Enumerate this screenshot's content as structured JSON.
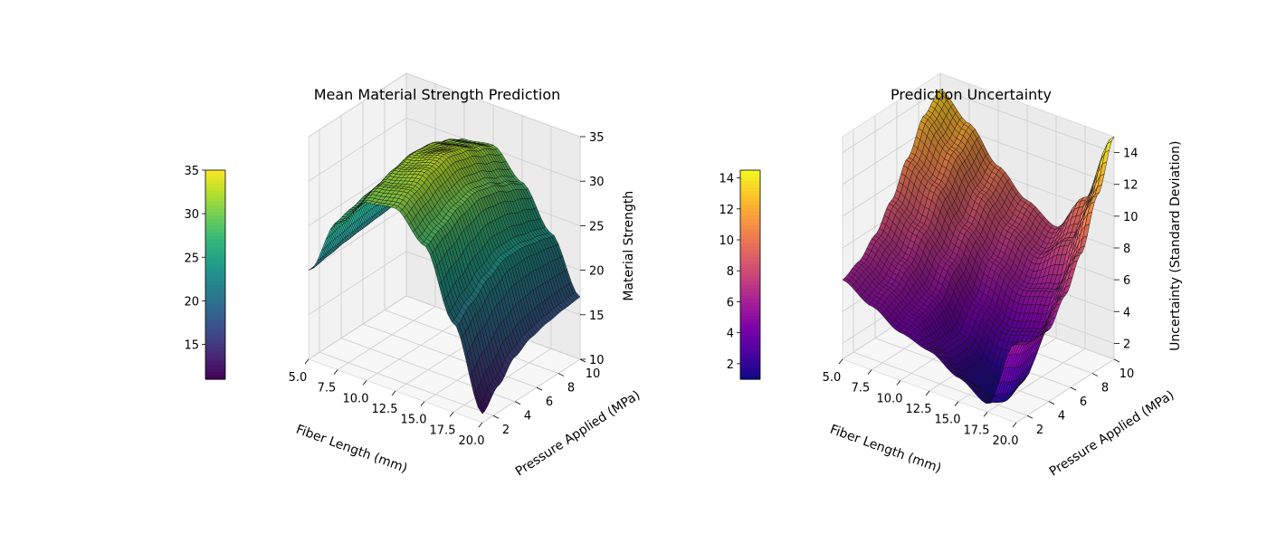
{
  "chart_data": [
    {
      "type": "surface3d",
      "title": "Mean Material Strength Prediction",
      "xlabel": "Fiber Length (mm)",
      "ylabel": "Pressure Applied (MPa)",
      "zlabel": "Material Strength",
      "xlim": [
        5,
        20
      ],
      "ylim": [
        1,
        10
      ],
      "zlim": [
        10,
        35
      ],
      "xticks": [
        "5.0",
        "7.5",
        "10.0",
        "12.5",
        "15.0",
        "17.5",
        "20.0"
      ],
      "yticks": [
        "2",
        "4",
        "6",
        "8",
        "10"
      ],
      "zticks": [
        "10",
        "15",
        "20",
        "25",
        "30",
        "35"
      ],
      "colormap": "viridis",
      "colorbar": {
        "range": [
          11,
          35
        ],
        "ticks": [
          "15",
          "20",
          "25",
          "30",
          "35"
        ]
      },
      "grid": true,
      "surface": {
        "x": [
          5,
          7.5,
          10,
          12.5,
          15,
          17.5,
          20
        ],
        "y": [
          1,
          2.5,
          4,
          5.5,
          7,
          8.5,
          10
        ],
        "z": [
          [
            20.0,
            26.5,
            30.0,
            30.5,
            27.5,
            20.0,
            11.0
          ],
          [
            20.3,
            27.0,
            30.8,
            31.5,
            28.5,
            21.5,
            13.0
          ],
          [
            20.6,
            27.5,
            31.5,
            32.5,
            29.5,
            23.0,
            15.0
          ],
          [
            20.8,
            27.8,
            32.0,
            33.0,
            30.0,
            24.0,
            16.0
          ],
          [
            21.0,
            27.8,
            31.8,
            32.5,
            29.5,
            24.0,
            16.5
          ],
          [
            21.2,
            27.5,
            31.0,
            31.5,
            28.5,
            23.5,
            16.8
          ],
          [
            21.5,
            27.0,
            30.0,
            30.5,
            27.5,
            23.0,
            17.0
          ]
        ]
      }
    },
    {
      "type": "surface3d",
      "title": "Prediction Uncertainty",
      "xlabel": "Fiber Length (mm)",
      "ylabel": "Pressure Applied (MPa)",
      "zlabel": "Uncertainty (Standard Deviation)",
      "xlim": [
        5,
        20
      ],
      "ylim": [
        1,
        10
      ],
      "zlim": [
        1,
        15
      ],
      "xticks": [
        "5.0",
        "7.5",
        "10.0",
        "12.5",
        "15.0",
        "17.5",
        "20.0"
      ],
      "yticks": [
        "2",
        "4",
        "6",
        "8",
        "10"
      ],
      "zticks": [
        "2",
        "4",
        "6",
        "8",
        "10",
        "12",
        "14"
      ],
      "colormap": "plasma",
      "colorbar": {
        "range": [
          1,
          14.5
        ],
        "ticks": [
          "2",
          "4",
          "6",
          "8",
          "10",
          "12",
          "14"
        ]
      },
      "grid": true,
      "surface": {
        "x": [
          5,
          7.5,
          10,
          12.5,
          15,
          17.5,
          20
        ],
        "y": [
          1,
          2.5,
          4,
          5.5,
          7,
          8.5,
          10
        ],
        "z": [
          [
            6.0,
            5.0,
            4.0,
            3.5,
            2.5,
            1.5,
            6.0
          ],
          [
            6.5,
            5.5,
            4.5,
            3.0,
            1.5,
            1.0,
            5.5
          ],
          [
            7.5,
            6.5,
            5.0,
            3.0,
            1.5,
            1.5,
            5.5
          ],
          [
            9.0,
            8.0,
            6.5,
            4.5,
            3.5,
            4.0,
            7.0
          ],
          [
            11.0,
            10.0,
            8.0,
            6.5,
            5.5,
            6.0,
            9.0
          ],
          [
            13.0,
            11.5,
            9.5,
            8.0,
            7.0,
            8.5,
            12.0
          ],
          [
            14.0,
            12.5,
            10.5,
            9.0,
            8.0,
            10.5,
            15.0
          ]
        ]
      }
    }
  ]
}
